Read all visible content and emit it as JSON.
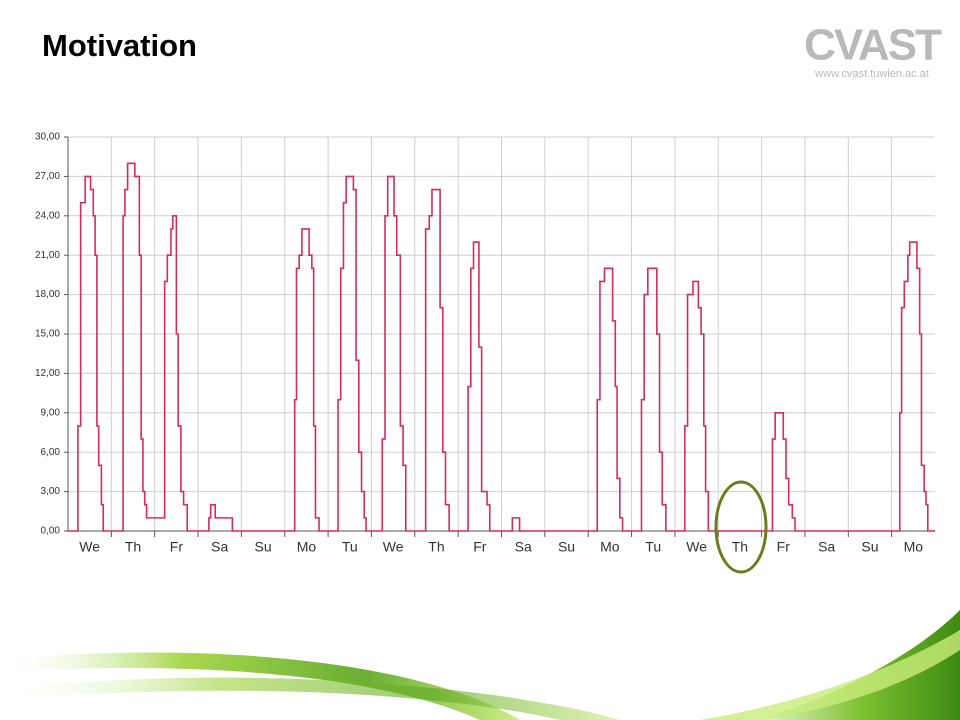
{
  "header": {
    "title": "Motivation",
    "logo": "CVAST",
    "url": "www.cvast.tuwien.ac.at"
  },
  "chart_data": {
    "type": "line",
    "step": true,
    "color": "#d42d5b",
    "grid": true,
    "xlim": [
      0,
      480
    ],
    "ylim": [
      0,
      30
    ],
    "yticks": [
      {
        "value": 0,
        "label": "0,00"
      },
      {
        "value": 3,
        "label": "3,00"
      },
      {
        "value": 6,
        "label": "6,00"
      },
      {
        "value": 9,
        "label": "9,00"
      },
      {
        "value": 12,
        "label": "12,00"
      },
      {
        "value": 15,
        "label": "15,00"
      },
      {
        "value": 18,
        "label": "18,00"
      },
      {
        "value": 21,
        "label": "21,00"
      },
      {
        "value": 24,
        "label": "24,00"
      },
      {
        "value": 27,
        "label": "27,00"
      },
      {
        "value": 30,
        "label": "30,00"
      }
    ],
    "xticks": [
      {
        "value": 12,
        "label": "We"
      },
      {
        "value": 36,
        "label": "Th"
      },
      {
        "value": 60,
        "label": "Fr"
      },
      {
        "value": 84,
        "label": "Sa"
      },
      {
        "value": 108,
        "label": "Su"
      },
      {
        "value": 132,
        "label": "Mo"
      },
      {
        "value": 156,
        "label": "Tu"
      },
      {
        "value": 180,
        "label": "We"
      },
      {
        "value": 204,
        "label": "Th"
      },
      {
        "value": 228,
        "label": "Fr"
      },
      {
        "value": 252,
        "label": "Sa"
      },
      {
        "value": 276,
        "label": "Su"
      },
      {
        "value": 300,
        "label": "Mo"
      },
      {
        "value": 324,
        "label": "Tu"
      },
      {
        "value": 348,
        "label": "We"
      },
      {
        "value": 372,
        "label": "Th"
      },
      {
        "value": 396,
        "label": "Fr"
      },
      {
        "value": 420,
        "label": "Sa"
      },
      {
        "value": 444,
        "label": "Su"
      },
      {
        "value": 468,
        "label": "Mo"
      }
    ],
    "x": [
      0,
      5.5,
      7,
      9.5,
      12.5,
      14,
      15,
      16,
      17,
      18.5,
      19.5,
      30.5,
      31.5,
      33,
      37,
      39.5,
      40.5,
      41.5,
      42.5,
      43.5,
      53.5,
      55,
      57,
      58,
      60,
      61,
      62.5,
      64,
      66,
      78,
      79,
      81.5,
      91,
      125.5,
      126.5,
      128,
      129.5,
      133.5,
      135,
      136,
      137,
      139,
      149.5,
      151,
      152.5,
      154,
      158,
      159.5,
      161,
      162.5,
      164,
      165,
      174,
      175.5,
      177,
      180.5,
      182,
      184,
      185.5,
      187,
      198,
      200,
      201.5,
      206,
      207.5,
      209,
      211,
      221.5,
      223,
      224.5,
      227.5,
      229,
      232,
      233.5,
      246,
      250,
      293,
      294.5,
      297,
      301.5,
      303,
      304,
      305.5,
      307,
      317.5,
      319,
      321,
      326,
      327.5,
      329,
      331,
      341.5,
      343,
      346,
      349,
      350.5,
      352,
      353,
      354.5,
      390,
      391.5,
      396,
      397.5,
      399,
      401,
      402.5,
      460.5,
      461.5,
      463,
      465,
      466,
      470,
      471.5,
      472.5,
      474,
      475,
      476,
      480
    ],
    "values": [
      0,
      8,
      25,
      27,
      26,
      24,
      21,
      8,
      5,
      2,
      0,
      24,
      26,
      28,
      27,
      21,
      7,
      3,
      2,
      1,
      19,
      21,
      23,
      24,
      15,
      8,
      3,
      2,
      0,
      1,
      2,
      1,
      0,
      10,
      20,
      21,
      23,
      21,
      20,
      8,
      1,
      0,
      10,
      20,
      25,
      27,
      26,
      13,
      6,
      3,
      1,
      0,
      7,
      24,
      27,
      24,
      21,
      8,
      5,
      0,
      23,
      24,
      26,
      17,
      6,
      2,
      0,
      11,
      20,
      22,
      14,
      3,
      2,
      0,
      1,
      0,
      10,
      19,
      20,
      16,
      11,
      4,
      1,
      0,
      10,
      18,
      20,
      15,
      6,
      2,
      0,
      8,
      18,
      19,
      17,
      15,
      8,
      3,
      0,
      7,
      9,
      7,
      4,
      2,
      1,
      0,
      9,
      17,
      19,
      21,
      22,
      20,
      15,
      5,
      3,
      2,
      0,
      0
    ]
  }
}
